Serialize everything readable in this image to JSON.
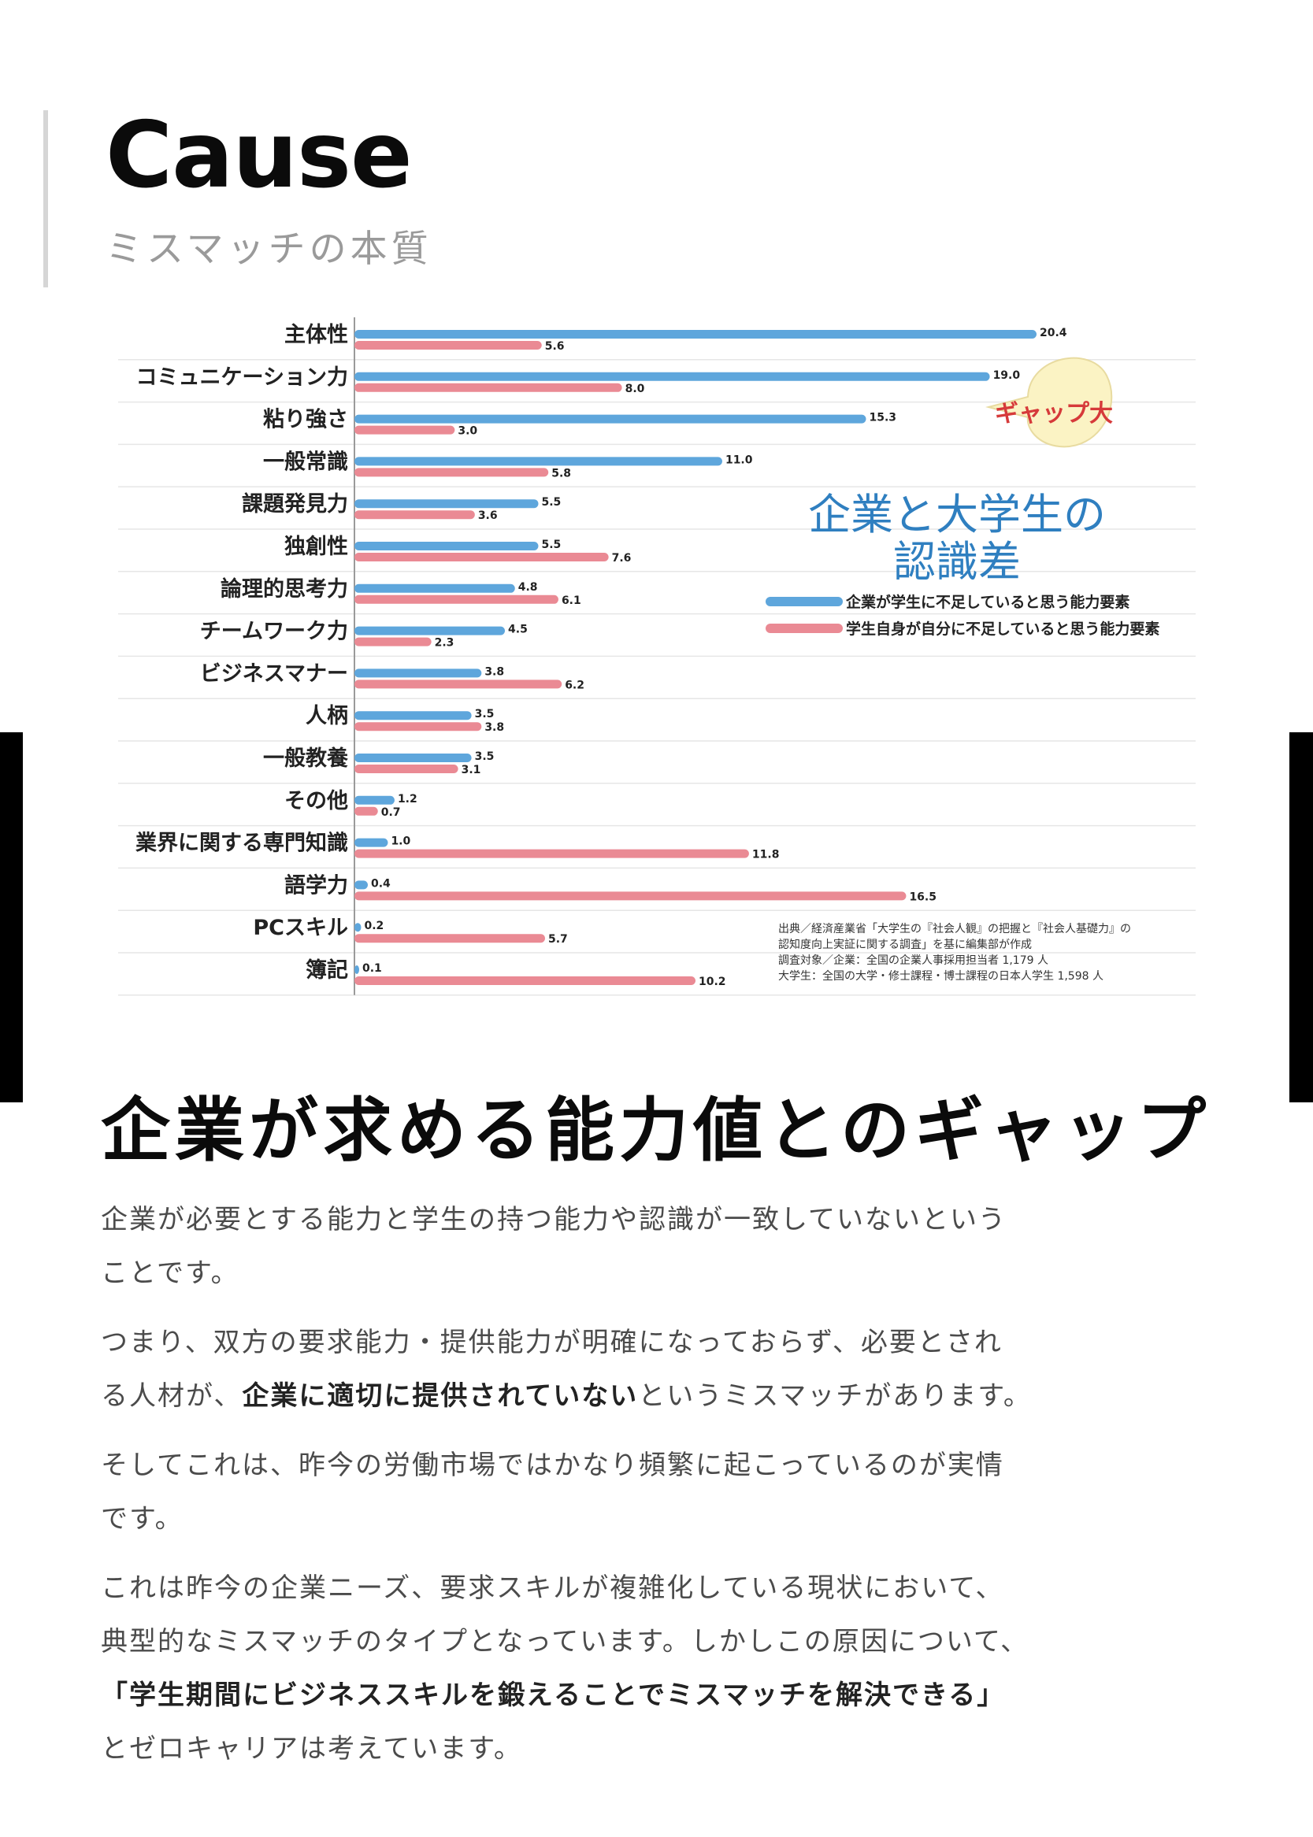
{
  "section": {
    "title": "Cause",
    "subtitle": "ミスマッチの本質"
  },
  "colors": {
    "company": "#5ea6dc",
    "student": "#ea8a94",
    "heading_blue": "#2f7fc0",
    "callout_red": "#d63a3a",
    "callout_fill": "#fbf3c4"
  },
  "chart_data": {
    "type": "bar",
    "orientation": "horizontal",
    "categories": [
      "主体性",
      "コミュニケーション力",
      "粘り強さ",
      "一般常識",
      "課題発見力",
      "独創性",
      "論理的思考力",
      "チームワーク力",
      "ビジネスマナー",
      "人柄",
      "一般教養",
      "その他",
      "業界に関する専門知識",
      "語学力",
      "PCスキル",
      "簿記"
    ],
    "series": [
      {
        "name": "企業が学生に不足していると思う能力要素",
        "values": [
          20.4,
          19.0,
          15.3,
          11.0,
          5.5,
          5.5,
          4.8,
          4.5,
          3.8,
          3.5,
          3.5,
          1.2,
          1.0,
          0.4,
          0.2,
          0.1
        ]
      },
      {
        "name": "学生自身が自分に不足していると思う能力要素",
        "values": [
          5.6,
          8.0,
          3.0,
          5.8,
          3.6,
          7.6,
          6.1,
          2.3,
          6.2,
          3.8,
          3.1,
          0.7,
          11.8,
          16.5,
          5.7,
          10.2
        ]
      }
    ],
    "value_labels": {
      "company": [
        "20.4",
        "19.0",
        "15.3",
        "11.0",
        "5.5",
        "5.5",
        "4.8",
        "4.5",
        "3.8",
        "3.5",
        "3.5",
        "1.2",
        "1.0",
        "0.4",
        "0.2",
        "0.1"
      ],
      "student": [
        "5.6",
        "8.0",
        "3.0",
        "5.8",
        "3.6",
        "7.6",
        "6.1",
        "2.3",
        "6.2",
        "3.8",
        "3.1",
        "0.7",
        "11.8",
        "16.5",
        "5.7",
        "10.2"
      ]
    },
    "xlim": [
      0,
      22
    ],
    "grid": true,
    "legend_position": "right",
    "title_lines": [
      "企業と大学生の",
      "認識差"
    ],
    "callout": "ギャップ大",
    "source": [
      "出典／経済産業省「大学生の『社会人観』の把握と『社会人基礎力』の",
      "認知度向上実証に関する調査」を基に編集部が作成",
      "調査対象／企業：全国の企業人事採用担当者 1,179 人",
      "大学生：全国の大学・修士課程・博士課程の日本人学生 1,598 人"
    ]
  },
  "article": {
    "heading": "企業が求める能力値とのギャップ",
    "p1": {
      "line1": "企業が必要とする能力と学生の持つ能力や認識が一致していないという",
      "line2": "ことです。"
    },
    "p2": {
      "line1": "つまり、双方の要求能力・提供能力が明確になっておらず、必要とされ",
      "line2_before": "る人材が、",
      "line2_bold": "企業に適切に提供されていない",
      "line2_after": "というミスマッチがあります。"
    },
    "p3": {
      "line1": "そしてこれは、昨今の労働市場ではかなり頻繁に起こっているのが実情",
      "line2": "です。"
    },
    "p4": {
      "line1": "これは昨今の企業ニーズ、要求スキルが複雑化している現状において、",
      "line2": "典型的なミスマッチのタイプとなっています。しかしこの原因について、",
      "line3_bold": "「学生期間にビジネススキルを鍛えることでミスマッチを解決できる」",
      "line4": "とゼロキャリアは考えています。"
    }
  }
}
